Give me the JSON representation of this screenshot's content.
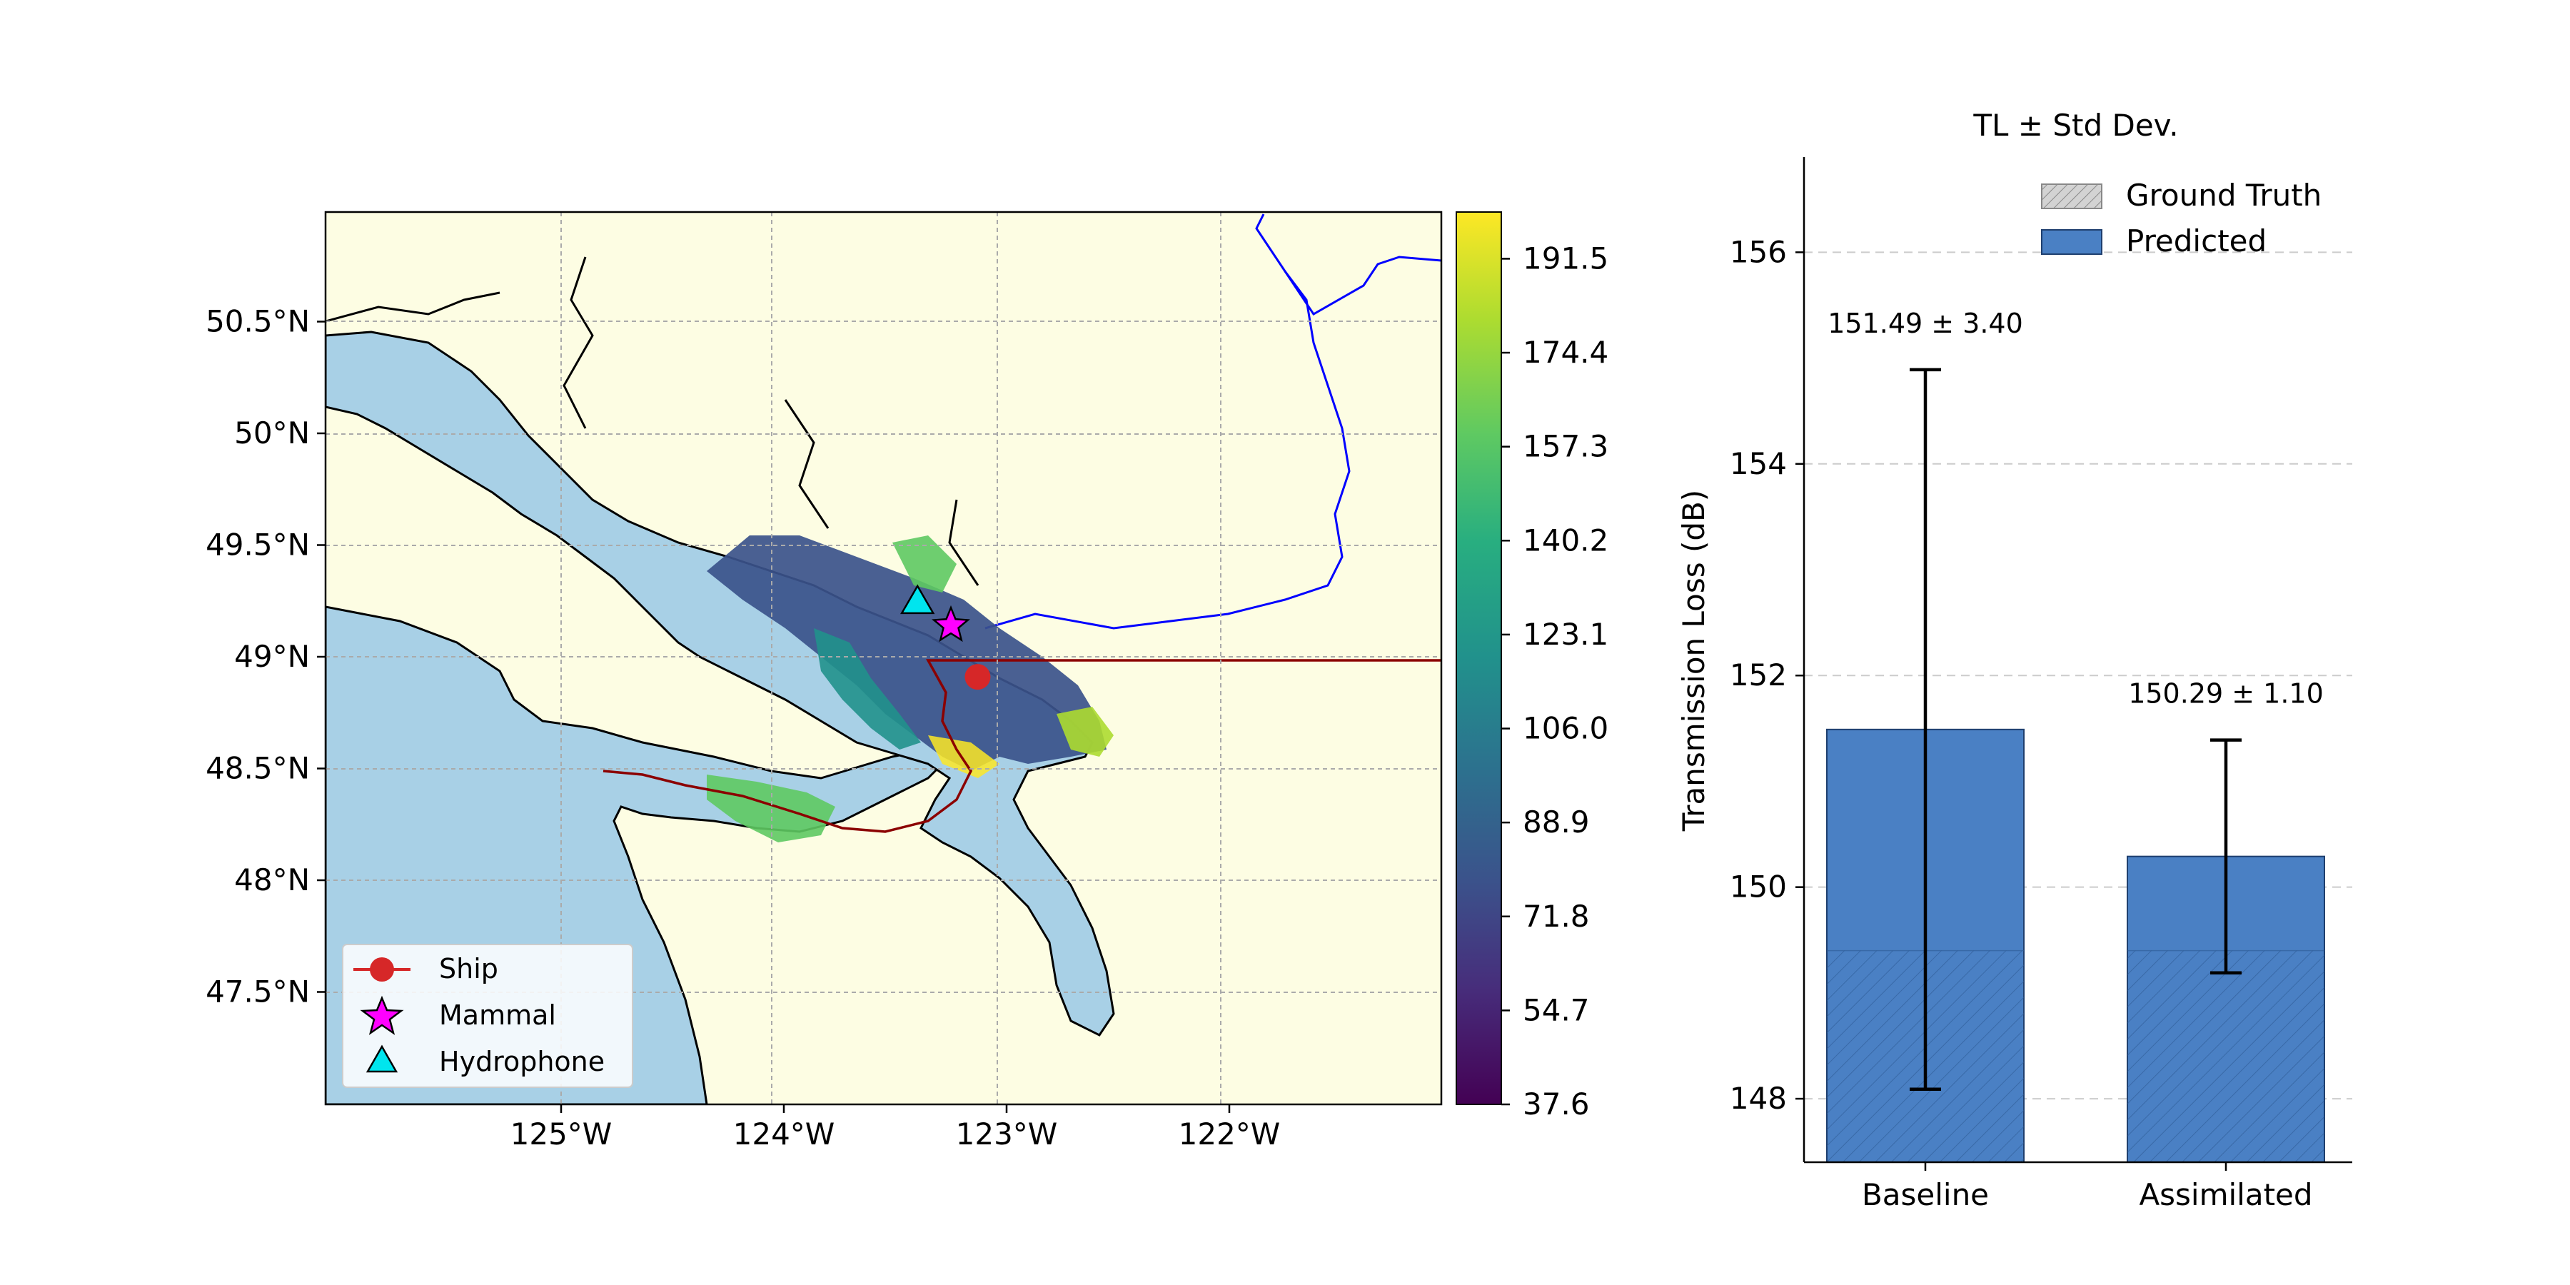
{
  "colors": {
    "land": "#fdfde3",
    "water": "#a8d0e6",
    "coast": "#000000",
    "river": "#0000ff",
    "route": "#8b0000",
    "ship": "#d62728",
    "mammal": "#ff00ff",
    "hydrophone": "#00e5ee",
    "bar": "#4a80c4",
    "bar_edge": "#1f3f6e",
    "grid": "#aaaaaa"
  },
  "map": {
    "lon_ticks": [
      "125°W",
      "124°W",
      "123°W",
      "122°W"
    ],
    "lat_ticks": [
      "50.5°N",
      "50°N",
      "49.5°N",
      "49°N",
      "48.5°N",
      "48°N",
      "47.5°N"
    ],
    "lon_values": [
      -125,
      -124,
      -123,
      -122
    ],
    "lat_values": [
      50.5,
      50.0,
      49.5,
      49.0,
      48.5,
      48.0,
      47.5
    ],
    "extent": {
      "lon": [
        -126.0,
        -121.0
      ],
      "lat": [
        47.0,
        51.0
      ]
    },
    "colorbar_ticks": [
      "191.5",
      "174.4",
      "157.3",
      "140.2",
      "123.1",
      "106.0",
      "88.9",
      "71.8",
      "54.7",
      "37.6"
    ],
    "colorbar_range": [
      37.6,
      200.0
    ],
    "colormap": "viridis",
    "legend": [
      {
        "label": "Ship",
        "marker": "circle"
      },
      {
        "label": "Mammal",
        "marker": "star"
      },
      {
        "label": "Hydrophone",
        "marker": "triangle"
      }
    ],
    "ship": {
      "lon": -123.13,
      "lat": 48.91
    },
    "mammal": {
      "lon": -123.25,
      "lat": 49.14
    },
    "hydrophone": {
      "lon": -123.4,
      "lat": 49.24
    }
  },
  "chart_data": {
    "type": "bar",
    "title": "TL ± Std Dev.",
    "xlabel": "",
    "ylabel": "Transmission Loss (dB)",
    "categories": [
      "Baseline",
      "Assimilated"
    ],
    "ylim": [
      147.4,
      156.9
    ],
    "yticks": [
      148,
      150,
      152,
      154,
      156
    ],
    "series": [
      {
        "name": "Predicted",
        "values": [
          151.49,
          150.29
        ],
        "errors": [
          3.4,
          1.1
        ]
      },
      {
        "name": "Ground Truth",
        "values": [
          149.4,
          149.4
        ]
      }
    ],
    "annotations": [
      "151.49 ± 3.40",
      "150.29 ± 1.10"
    ],
    "legend_position": "top-right",
    "grid": "y-dashed"
  }
}
